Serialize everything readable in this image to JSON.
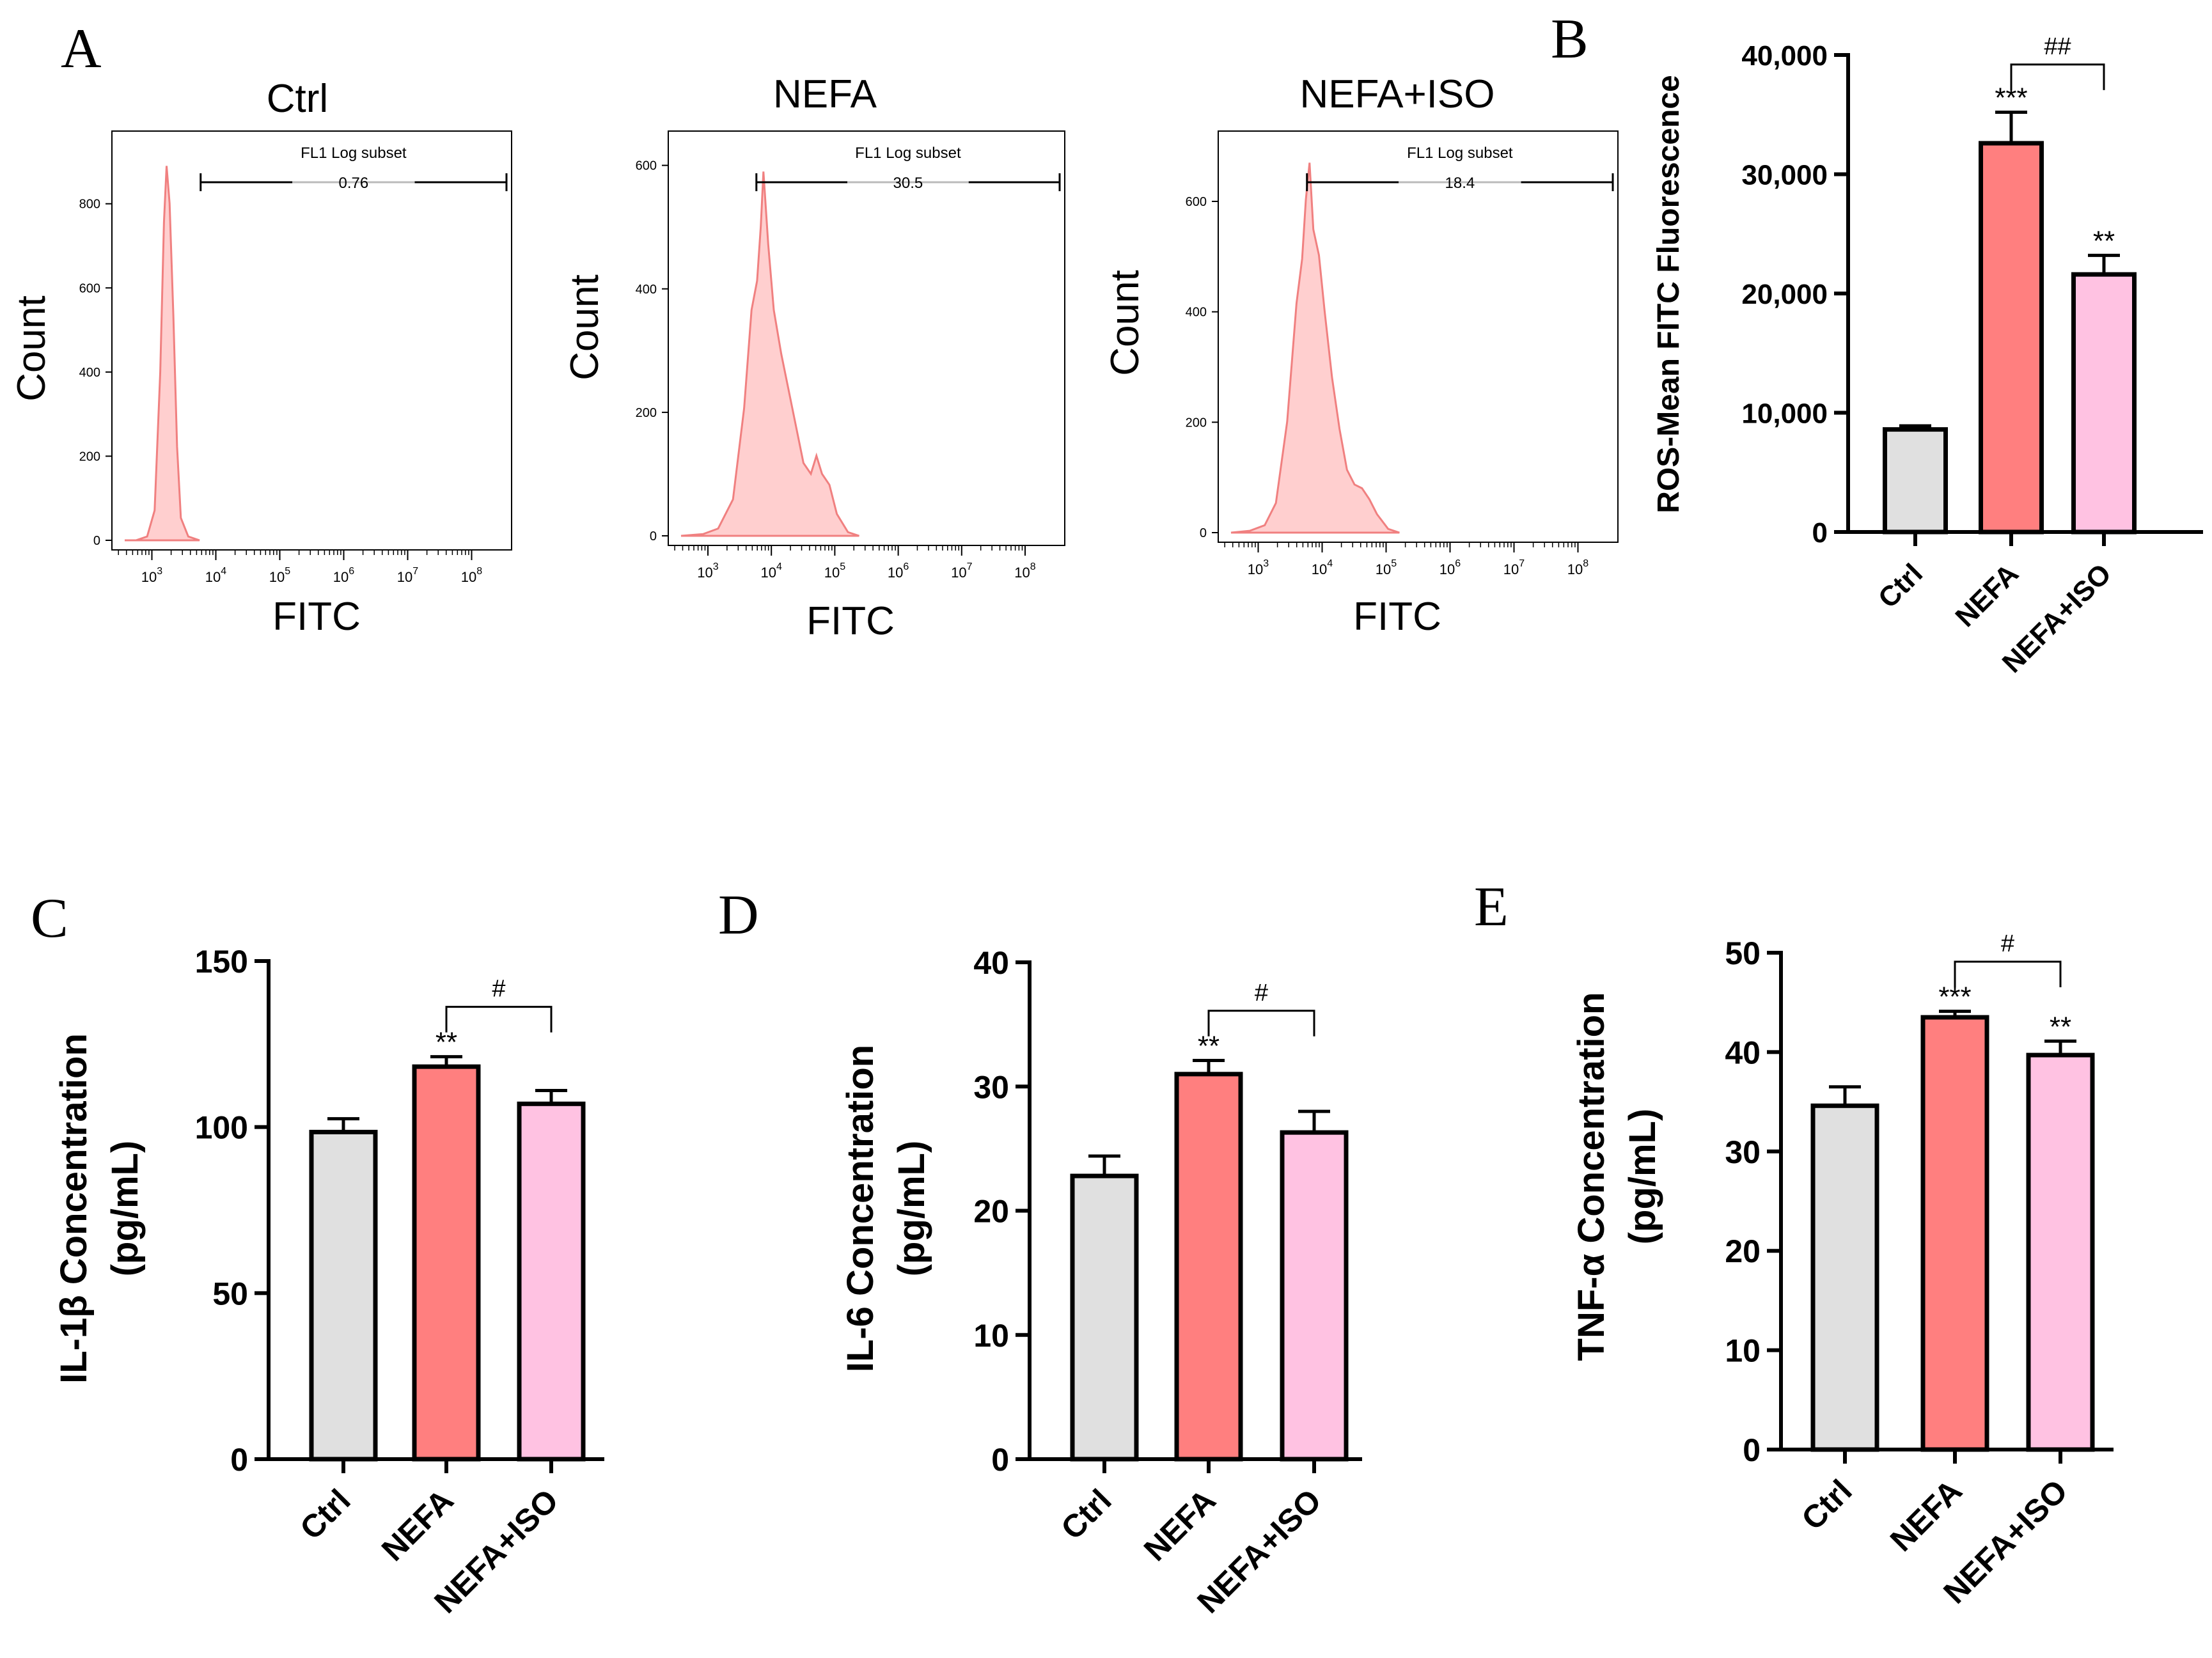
{
  "panels": {
    "A": "A",
    "B": "B",
    "C": "C",
    "D": "D",
    "E": "E"
  },
  "colors": {
    "ctrl": "#e0e0e0",
    "nefa": "#ff7f7f",
    "iso": "#ffc2e2",
    "hist_fill": "#ffcfcf",
    "hist_line": "#f08080"
  },
  "flow": [
    {
      "title": "Ctrl",
      "gate_label": "FL1 Log subset",
      "gate_value": "0.76",
      "ylabel": "Count",
      "xlabel": "FITC",
      "yticks": [
        0,
        200,
        400,
        600,
        800
      ],
      "ymax": 950,
      "xtick_bases": [
        "10",
        "10",
        "10",
        "10",
        "10",
        "10"
      ],
      "xtick_exps": [
        "3",
        "4",
        "5",
        "6",
        "7",
        "8"
      ],
      "peak_count": 890
    },
    {
      "title": "NEFA",
      "gate_label": "FL1 Log subset",
      "gate_value": "30.5",
      "ylabel": "Count",
      "xlabel": "FITC",
      "yticks": [
        0,
        200,
        400,
        600
      ],
      "ymax": 640,
      "xtick_bases": [
        "10",
        "10",
        "10",
        "10",
        "10",
        "10"
      ],
      "xtick_exps": [
        "3",
        "4",
        "5",
        "6",
        "7",
        "8"
      ],
      "peak_count": 590
    },
    {
      "title": "NEFA+ISO",
      "gate_label": "FL1 Log subset",
      "gate_value": "18.4",
      "ylabel": "Count",
      "xlabel": "FITC",
      "yticks": [
        0,
        200,
        400,
        600
      ],
      "ymax": 710,
      "xtick_bases": [
        "10",
        "10",
        "10",
        "10",
        "10",
        "10"
      ],
      "xtick_exps": [
        "3",
        "4",
        "5",
        "6",
        "7",
        "8"
      ],
      "peak_count": 670
    }
  ],
  "chart_data": [
    {
      "id": "B",
      "type": "bar",
      "title": "",
      "ylabel": "ROS-Mean FITC Fluorescence",
      "xlabel": "",
      "categories": [
        "Ctrl",
        "NEFA",
        "NEFA+ISO"
      ],
      "values": [
        8600,
        32600,
        21600
      ],
      "errors": [
        300,
        2600,
        1600
      ],
      "stars": [
        "",
        "***",
        "**"
      ],
      "ylim": [
        0,
        40000
      ],
      "yticks": [
        0,
        10000,
        20000,
        30000,
        40000
      ],
      "ytick_labels": [
        "0",
        "10,000",
        "20,000",
        "30,000",
        "40,000"
      ],
      "bracket": {
        "from": 1,
        "to": 2,
        "label": "##"
      }
    },
    {
      "id": "C",
      "type": "bar",
      "title": "",
      "ylabel": "IL-1β Concentration",
      "ylabel2": "(pg/mL)",
      "xlabel": "",
      "categories": [
        "Ctrl",
        "NEFA",
        "NEFA+ISO"
      ],
      "values": [
        98.5,
        118.2,
        107
      ],
      "errors": [
        4,
        3,
        4
      ],
      "stars": [
        "",
        "**",
        ""
      ],
      "ylim": [
        0,
        150
      ],
      "yticks": [
        0,
        50,
        100,
        150
      ],
      "ytick_labels": [
        "0",
        "50",
        "100",
        "150"
      ],
      "bracket": {
        "from": 1,
        "to": 2,
        "label": "#"
      }
    },
    {
      "id": "D",
      "type": "bar",
      "title": "",
      "ylabel": "IL-6 Concentration",
      "ylabel2": "(pg/mL)",
      "xlabel": "",
      "categories": [
        "Ctrl",
        "NEFA",
        "NEFA+ISO"
      ],
      "values": [
        22.8,
        31,
        26.3
      ],
      "errors": [
        1.6,
        1.1,
        1.7
      ],
      "stars": [
        "",
        "**",
        ""
      ],
      "ylim": [
        0,
        40
      ],
      "yticks": [
        0,
        10,
        20,
        30,
        40
      ],
      "ytick_labels": [
        "0",
        "10",
        "20",
        "30",
        "40"
      ],
      "bracket": {
        "from": 1,
        "to": 2,
        "label": "#"
      }
    },
    {
      "id": "E",
      "type": "bar",
      "title": "",
      "ylabel": "TNF-α Concentration",
      "ylabel2": "(pg/mL)",
      "xlabel": "",
      "categories": [
        "Ctrl",
        "NEFA",
        "NEFA+ISO"
      ],
      "values": [
        34.6,
        43.5,
        39.7
      ],
      "errors": [
        1.9,
        0.6,
        1.4
      ],
      "stars": [
        "",
        "***",
        "**"
      ],
      "ylim": [
        0,
        50
      ],
      "yticks": [
        0,
        10,
        20,
        30,
        40,
        50
      ],
      "ytick_labels": [
        "0",
        "10",
        "20",
        "30",
        "40",
        "50"
      ],
      "bracket": {
        "from": 1,
        "to": 2,
        "label": "#"
      }
    }
  ]
}
